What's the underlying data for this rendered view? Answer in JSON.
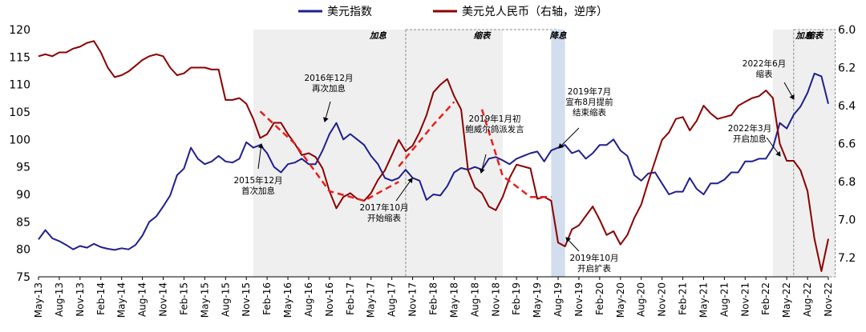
{
  "chart_data": {
    "type": "line",
    "left_axis": {
      "min": 75,
      "max": 120,
      "ticks": [
        75,
        80,
        85,
        90,
        95,
        100,
        105,
        110,
        115,
        120
      ]
    },
    "right_axis": {
      "min": 6.0,
      "max": 7.3,
      "inverted": true,
      "ticks": [
        "6.0",
        "6.2",
        "6.4",
        "6.6",
        "6.8",
        "7.0",
        "7.2"
      ]
    },
    "x_ticks": [
      "May-13",
      "Aug-13",
      "Nov-13",
      "Feb-14",
      "May-14",
      "Aug-14",
      "Nov-14",
      "Feb-15",
      "May-15",
      "Aug-15",
      "Nov-15",
      "Feb-16",
      "May-16",
      "Aug-16",
      "Nov-16",
      "Feb-17",
      "May-17",
      "Aug-17",
      "Nov-17",
      "Feb-18",
      "May-18",
      "Aug-18",
      "Nov-18",
      "Feb-19",
      "May-19",
      "Aug-19",
      "Nov-19",
      "Feb-20",
      "May-20",
      "Aug-20",
      "Nov-20",
      "Feb-21",
      "May-21",
      "Aug-21",
      "Nov-21",
      "Feb-22",
      "May-22",
      "Aug-22",
      "Nov-22"
    ],
    "legend": [
      {
        "name": "美元指数",
        "color": "#1f1f8f"
      },
      {
        "name": "美元兑人民币（右轴，逆序）",
        "color": "#8b0000"
      }
    ],
    "series": [
      {
        "name": "美元指数",
        "axis": "left",
        "color": "#1f1f8f",
        "points": [
          [
            "May-13",
            81.8
          ],
          [
            "Jun-13",
            83.5
          ],
          [
            "Jul-13",
            82.0
          ],
          [
            "Aug-13",
            81.5
          ],
          [
            "Sep-13",
            80.8
          ],
          [
            "Oct-13",
            80.0
          ],
          [
            "Nov-13",
            80.6
          ],
          [
            "Dec-13",
            80.3
          ],
          [
            "Jan-14",
            81.0
          ],
          [
            "Feb-14",
            80.4
          ],
          [
            "Mar-14",
            80.1
          ],
          [
            "Apr-14",
            79.9
          ],
          [
            "May-14",
            80.2
          ],
          [
            "Jun-14",
            80.0
          ],
          [
            "Jul-14",
            80.8
          ],
          [
            "Aug-14",
            82.5
          ],
          [
            "Sep-14",
            85.0
          ],
          [
            "Oct-14",
            86.0
          ],
          [
            "Nov-14",
            87.8
          ],
          [
            "Dec-14",
            89.8
          ],
          [
            "Jan-15",
            93.5
          ],
          [
            "Feb-15",
            94.7
          ],
          [
            "Mar-15",
            98.5
          ],
          [
            "Apr-15",
            96.5
          ],
          [
            "May-15",
            95.5
          ],
          [
            "Jun-15",
            96.0
          ],
          [
            "Jul-15",
            97.0
          ],
          [
            "Aug-15",
            96.0
          ],
          [
            "Sep-15",
            95.8
          ],
          [
            "Oct-15",
            96.5
          ],
          [
            "Nov-15",
            99.5
          ],
          [
            "Dec-15",
            98.5
          ],
          [
            "Jan-16",
            99.0
          ],
          [
            "Feb-16",
            97.5
          ],
          [
            "Mar-16",
            95.0
          ],
          [
            "Apr-16",
            94.0
          ],
          [
            "May-16",
            95.5
          ],
          [
            "Jun-16",
            95.8
          ],
          [
            "Jul-16",
            96.5
          ],
          [
            "Aug-16",
            95.5
          ],
          [
            "Sep-16",
            95.5
          ],
          [
            "Oct-16",
            98.0
          ],
          [
            "Nov-16",
            101.0
          ],
          [
            "Dec-16",
            103.0
          ],
          [
            "Jan-17",
            100.0
          ],
          [
            "Feb-17",
            101.0
          ],
          [
            "Mar-17",
            100.0
          ],
          [
            "Apr-17",
            99.0
          ],
          [
            "May-17",
            97.0
          ],
          [
            "Jun-17",
            95.5
          ],
          [
            "Jul-17",
            93.0
          ],
          [
            "Aug-17",
            92.5
          ],
          [
            "Sep-17",
            93.0
          ],
          [
            "Oct-17",
            94.5
          ],
          [
            "Nov-17",
            93.0
          ],
          [
            "Dec-17",
            92.5
          ],
          [
            "Jan-18",
            89.0
          ],
          [
            "Feb-18",
            90.0
          ],
          [
            "Mar-18",
            89.8
          ],
          [
            "Apr-18",
            91.5
          ],
          [
            "May-18",
            94.0
          ],
          [
            "Jun-18",
            94.8
          ],
          [
            "Jul-18",
            94.5
          ],
          [
            "Aug-18",
            95.0
          ],
          [
            "Sep-18",
            94.5
          ],
          [
            "Oct-18",
            96.5
          ],
          [
            "Nov-18",
            96.8
          ],
          [
            "Dec-18",
            96.2
          ],
          [
            "Jan-19",
            95.5
          ],
          [
            "Feb-19",
            96.5
          ],
          [
            "Mar-19",
            97.0
          ],
          [
            "Apr-19",
            97.5
          ],
          [
            "May-19",
            97.8
          ],
          [
            "Jun-19",
            96.0
          ],
          [
            "Jul-19",
            98.0
          ],
          [
            "Aug-19",
            98.5
          ],
          [
            "Sep-19",
            99.0
          ],
          [
            "Oct-19",
            97.5
          ],
          [
            "Nov-19",
            98.0
          ],
          [
            "Dec-19",
            96.5
          ],
          [
            "Jan-20",
            97.5
          ],
          [
            "Feb-20",
            99.0
          ],
          [
            "Mar-20",
            99.0
          ],
          [
            "Apr-20",
            100.0
          ],
          [
            "May-20",
            98.0
          ],
          [
            "Jun-20",
            97.0
          ],
          [
            "Jul-20",
            93.5
          ],
          [
            "Aug-20",
            92.5
          ],
          [
            "Sep-20",
            93.8
          ],
          [
            "Oct-20",
            94.0
          ],
          [
            "Nov-20",
            92.0
          ],
          [
            "Dec-20",
            90.0
          ],
          [
            "Jan-21",
            90.5
          ],
          [
            "Feb-21",
            90.5
          ],
          [
            "Mar-21",
            93.0
          ],
          [
            "Apr-21",
            91.0
          ],
          [
            "May-21",
            90.0
          ],
          [
            "Jun-21",
            92.0
          ],
          [
            "Jul-21",
            92.0
          ],
          [
            "Aug-21",
            92.7
          ],
          [
            "Sep-21",
            94.0
          ],
          [
            "Oct-21",
            94.0
          ],
          [
            "Nov-21",
            96.0
          ],
          [
            "Dec-21",
            96.0
          ],
          [
            "Jan-22",
            96.5
          ],
          [
            "Feb-22",
            96.5
          ],
          [
            "Mar-22",
            98.5
          ],
          [
            "Apr-22",
            103.0
          ],
          [
            "May-22",
            102.0
          ],
          [
            "Jun-22",
            104.5
          ],
          [
            "Jul-22",
            106.0
          ],
          [
            "Aug-22",
            108.5
          ],
          [
            "Sep-22",
            112.0
          ],
          [
            "Oct-22",
            111.5
          ],
          [
            "Nov-22",
            106.5
          ]
        ]
      },
      {
        "name": "美元兑人民币（右轴，逆序）",
        "axis": "right",
        "color": "#8b0000",
        "points": [
          [
            "May-13",
            6.14
          ],
          [
            "Jun-13",
            6.13
          ],
          [
            "Jul-13",
            6.14
          ],
          [
            "Aug-13",
            6.12
          ],
          [
            "Sep-13",
            6.12
          ],
          [
            "Oct-13",
            6.1
          ],
          [
            "Nov-13",
            6.09
          ],
          [
            "Dec-13",
            6.07
          ],
          [
            "Jan-14",
            6.06
          ],
          [
            "Feb-14",
            6.12
          ],
          [
            "Mar-14",
            6.2
          ],
          [
            "Apr-14",
            6.25
          ],
          [
            "May-14",
            6.24
          ],
          [
            "Jun-14",
            6.22
          ],
          [
            "Jul-14",
            6.19
          ],
          [
            "Aug-14",
            6.16
          ],
          [
            "Sep-14",
            6.14
          ],
          [
            "Oct-14",
            6.13
          ],
          [
            "Nov-14",
            6.14
          ],
          [
            "Dec-14",
            6.2
          ],
          [
            "Jan-15",
            6.24
          ],
          [
            "Feb-15",
            6.23
          ],
          [
            "Mar-15",
            6.2
          ],
          [
            "Apr-15",
            6.2
          ],
          [
            "May-15",
            6.2
          ],
          [
            "Jun-15",
            6.21
          ],
          [
            "Jul-15",
            6.21
          ],
          [
            "Aug-15",
            6.37
          ],
          [
            "Sep-15",
            6.37
          ],
          [
            "Oct-15",
            6.36
          ],
          [
            "Nov-15",
            6.39
          ],
          [
            "Dec-15",
            6.47
          ],
          [
            "Jan-16",
            6.57
          ],
          [
            "Feb-16",
            6.55
          ],
          [
            "Mar-16",
            6.49
          ],
          [
            "Apr-16",
            6.49
          ],
          [
            "May-16",
            6.55
          ],
          [
            "Jun-16",
            6.6
          ],
          [
            "Jul-16",
            6.66
          ],
          [
            "Aug-16",
            6.65
          ],
          [
            "Sep-16",
            6.67
          ],
          [
            "Oct-16",
            6.73
          ],
          [
            "Nov-16",
            6.85
          ],
          [
            "Dec-16",
            6.94
          ],
          [
            "Jan-17",
            6.88
          ],
          [
            "Feb-17",
            6.86
          ],
          [
            "Mar-17",
            6.89
          ],
          [
            "Apr-17",
            6.9
          ],
          [
            "May-17",
            6.86
          ],
          [
            "Jun-17",
            6.79
          ],
          [
            "Jul-17",
            6.74
          ],
          [
            "Aug-17",
            6.66
          ],
          [
            "Sep-17",
            6.58
          ],
          [
            "Oct-17",
            6.64
          ],
          [
            "Nov-17",
            6.61
          ],
          [
            "Dec-17",
            6.54
          ],
          [
            "Jan-18",
            6.45
          ],
          [
            "Feb-18",
            6.33
          ],
          [
            "Mar-18",
            6.29
          ],
          [
            "Apr-18",
            6.26
          ],
          [
            "May-18",
            6.35
          ],
          [
            "Jun-18",
            6.42
          ],
          [
            "Jul-18",
            6.74
          ],
          [
            "Aug-18",
            6.83
          ],
          [
            "Sep-18",
            6.86
          ],
          [
            "Oct-18",
            6.93
          ],
          [
            "Nov-18",
            6.95
          ],
          [
            "Dec-18",
            6.88
          ],
          [
            "Jan-19",
            6.78
          ],
          [
            "Feb-19",
            6.71
          ],
          [
            "Mar-19",
            6.72
          ],
          [
            "Apr-19",
            6.73
          ],
          [
            "May-19",
            6.89
          ],
          [
            "Jun-19",
            6.88
          ],
          [
            "Jul-19",
            6.9
          ],
          [
            "Aug-19",
            7.12
          ],
          [
            "Sep-19",
            7.14
          ],
          [
            "Oct-19",
            7.05
          ],
          [
            "Nov-19",
            7.03
          ],
          [
            "Dec-19",
            6.98
          ],
          [
            "Jan-20",
            6.93
          ],
          [
            "Feb-20",
            7.0
          ],
          [
            "Mar-20",
            7.08
          ],
          [
            "Apr-20",
            7.06
          ],
          [
            "May-20",
            7.13
          ],
          [
            "Jun-20",
            7.08
          ],
          [
            "Jul-20",
            6.99
          ],
          [
            "Aug-20",
            6.92
          ],
          [
            "Sep-20",
            6.8
          ],
          [
            "Oct-20",
            6.69
          ],
          [
            "Nov-20",
            6.58
          ],
          [
            "Dec-20",
            6.54
          ],
          [
            "Jan-21",
            6.47
          ],
          [
            "Feb-21",
            6.46
          ],
          [
            "Mar-21",
            6.53
          ],
          [
            "Apr-21",
            6.48
          ],
          [
            "May-21",
            6.4
          ],
          [
            "Jun-21",
            6.44
          ],
          [
            "Jul-21",
            6.47
          ],
          [
            "Aug-21",
            6.46
          ],
          [
            "Sep-21",
            6.45
          ],
          [
            "Oct-21",
            6.4
          ],
          [
            "Nov-21",
            6.38
          ],
          [
            "Dec-21",
            6.36
          ],
          [
            "Jan-22",
            6.35
          ],
          [
            "Feb-22",
            6.32
          ],
          [
            "Mar-22",
            6.36
          ],
          [
            "Apr-22",
            6.6
          ],
          [
            "May-22",
            6.69
          ],
          [
            "Jun-22",
            6.69
          ],
          [
            "Jul-22",
            6.74
          ],
          [
            "Aug-22",
            6.85
          ],
          [
            "Sep-22",
            7.1
          ],
          [
            "Oct-22",
            7.27
          ],
          [
            "Nov-22",
            7.1
          ]
        ]
      }
    ],
    "regions": [
      {
        "from": "Dec-15",
        "to": "Dec-18",
        "label": "加息",
        "style": "solid"
      },
      {
        "from": "Oct-17",
        "to": "Aug-19",
        "label": "缩表",
        "style": "dashed"
      },
      {
        "from": "Jul-19",
        "to": "Sep-19",
        "label": "降息",
        "style": "blue"
      },
      {
        "from": "Mar-22",
        "to": "Dec-22",
        "label": "加息",
        "style": "solid"
      },
      {
        "from": "Jun-22",
        "to": "Dec-22",
        "label": "缩表",
        "style": "dashed"
      }
    ],
    "trend_lines": [
      {
        "points": [
          [
            "Jan-16",
            6.43
          ],
          [
            "Jun-16",
            6.6
          ],
          [
            "Nov-16",
            6.85
          ],
          [
            "Apr-17",
            6.9
          ],
          [
            "Sep-17",
            6.8
          ]
        ]
      },
      {
        "points": [
          [
            "Sep-17",
            6.72
          ],
          [
            "Feb-18",
            6.5
          ],
          [
            "May-18",
            6.38
          ]
        ]
      },
      {
        "points": [
          [
            "Sep-18",
            6.42
          ],
          [
            "Dec-18",
            6.77
          ],
          [
            "Apr-19",
            6.88
          ],
          [
            "Jul-19",
            6.88
          ]
        ]
      }
    ],
    "annotations": [
      {
        "id": "a2015",
        "lines": [
          "2015年12月",
          "首次加息"
        ]
      },
      {
        "id": "a2016",
        "lines": [
          "2016年12月",
          "再次加息"
        ]
      },
      {
        "id": "a2017",
        "lines": [
          "2017年10月",
          "开始缩表"
        ]
      },
      {
        "id": "a2019jan",
        "lines": [
          "2019年1月初",
          "鲍威尔鸽派发言"
        ]
      },
      {
        "id": "a2019jul",
        "lines": [
          "2019年7月",
          "宣布8月提前",
          "结束缩表"
        ]
      },
      {
        "id": "a2019oct",
        "lines": [
          "2019年10月",
          "开启扩表"
        ]
      },
      {
        "id": "a2022mar",
        "lines": [
          "2022年3月",
          "开启加息"
        ]
      },
      {
        "id": "a2022jun",
        "lines": [
          "2022年6月",
          "缩表"
        ]
      }
    ]
  }
}
